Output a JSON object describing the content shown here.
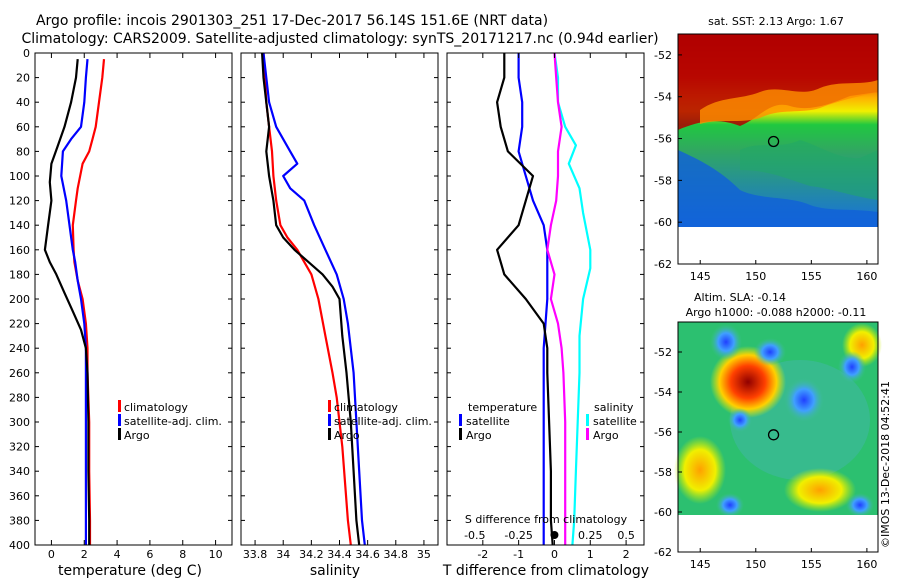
{
  "title": {
    "line1": "Argo profile: incois 2901303_251 17-Dec-2017 56.14S 151.6E (NRT data)",
    "line2": "Climatology: CARS2009. Satellite-adjusted climatology: synTS_20171217.nc (0.94d earlier)"
  },
  "watermark": "©IMOS 13-Dec-2018 04:52:41",
  "colors": {
    "climatology": "#ff0000",
    "satellite": "#0000ff",
    "argo": "#000000",
    "sal_satellite": "#00ffff",
    "sal_argo": "#ff00ff"
  },
  "chart_data": [
    {
      "type": "line",
      "id": "temperature",
      "xlabel": "temperature (deg C)",
      "ylabel": "",
      "xlim": [
        -1,
        11
      ],
      "ylim": [
        400,
        0
      ],
      "xticks": [
        0,
        2,
        4,
        6,
        8,
        10
      ],
      "xtick_labels": [
        "0",
        "2",
        "4",
        "6",
        "8",
        "10"
      ],
      "yticks": [
        0,
        20,
        40,
        60,
        80,
        100,
        120,
        140,
        160,
        180,
        200,
        220,
        240,
        260,
        280,
        300,
        320,
        340,
        360,
        380,
        400
      ],
      "ytick_labels": [
        "0",
        "20",
        "40",
        "60",
        "80",
        "100",
        "120",
        "140",
        "160",
        "180",
        "200",
        "220",
        "240",
        "260",
        "280",
        "300",
        "320",
        "340",
        "360",
        "380",
        "400"
      ],
      "legend": [
        "climatology",
        "satellite-adj. clim.",
        "Argo"
      ],
      "series": [
        {
          "name": "climatology",
          "color": "#ff0000",
          "x": [
            3.2,
            3.1,
            2.9,
            2.7,
            2.5,
            2.3,
            1.9,
            1.6,
            1.5,
            1.3,
            1.35,
            1.4,
            1.6,
            1.9,
            2.1,
            2.2,
            2.2,
            2.3,
            2.3,
            2.35,
            2.35
          ],
          "y": [
            5,
            20,
            40,
            60,
            70,
            80,
            90,
            110,
            120,
            140,
            160,
            170,
            185,
            200,
            220,
            240,
            260,
            300,
            340,
            380,
            400
          ]
        },
        {
          "name": "satellite-adj. clim.",
          "color": "#0000ff",
          "x": [
            2.2,
            2.1,
            2.0,
            1.8,
            1.2,
            0.7,
            0.6,
            0.9,
            1.1,
            1.3,
            1.45,
            1.6,
            1.8,
            2.0,
            2.1,
            2.1,
            2.1,
            2.1,
            2.1
          ],
          "y": [
            5,
            20,
            40,
            60,
            70,
            80,
            100,
            120,
            140,
            160,
            170,
            185,
            200,
            220,
            240,
            280,
            320,
            360,
            400
          ]
        },
        {
          "name": "Argo",
          "color": "#000000",
          "x": [
            1.6,
            1.5,
            1.2,
            0.8,
            0.4,
            0.0,
            -0.1,
            0.0,
            -0.2,
            -0.4,
            -0.1,
            0.3,
            0.8,
            1.3,
            1.8,
            2.1,
            2.2,
            2.25,
            2.25,
            2.3,
            2.3
          ],
          "y": [
            5,
            20,
            40,
            60,
            75,
            90,
            105,
            120,
            140,
            160,
            170,
            180,
            195,
            210,
            225,
            240,
            260,
            300,
            340,
            380,
            400
          ]
        }
      ]
    },
    {
      "type": "line",
      "id": "salinity",
      "xlabel": "salinity",
      "xlim": [
        33.7,
        35.1
      ],
      "ylim": [
        400,
        0
      ],
      "xticks": [
        33.8,
        34,
        34.2,
        34.4,
        34.6,
        34.8,
        35
      ],
      "xtick_labels": [
        "33.8",
        "34",
        "34.2",
        "34.4",
        "34.6",
        "34.8",
        "35"
      ],
      "legend": [
        "climatology",
        "satellite-adj. clim.",
        "Argo"
      ],
      "series": [
        {
          "name": "climatology",
          "color": "#ff0000",
          "x": [
            33.86,
            33.87,
            33.88,
            33.9,
            33.92,
            33.93,
            33.95,
            33.98,
            34.03,
            34.1,
            34.15,
            34.2,
            34.25,
            34.3,
            34.35,
            34.38,
            34.4,
            34.42,
            34.44,
            34.46,
            34.48
          ],
          "y": [
            0,
            20,
            40,
            60,
            80,
            100,
            120,
            140,
            150,
            160,
            170,
            180,
            200,
            230,
            260,
            280,
            300,
            320,
            350,
            380,
            400
          ]
        },
        {
          "name": "satellite-adj. clim.",
          "color": "#0000ff",
          "x": [
            33.86,
            33.88,
            33.9,
            33.95,
            34.05,
            34.1,
            34.0,
            34.05,
            34.15,
            34.22,
            34.3,
            34.38,
            34.43,
            34.46,
            34.5,
            34.52,
            34.54,
            34.56,
            34.58
          ],
          "y": [
            0,
            20,
            40,
            60,
            80,
            90,
            100,
            110,
            120,
            140,
            160,
            180,
            200,
            220,
            260,
            300,
            340,
            380,
            400
          ]
        },
        {
          "name": "Argo",
          "color": "#000000",
          "x": [
            33.85,
            33.86,
            33.88,
            33.9,
            33.88,
            33.9,
            33.93,
            33.95,
            34.0,
            34.08,
            34.18,
            34.28,
            34.35,
            34.4,
            34.42,
            34.45,
            34.48,
            34.5,
            34.52,
            34.54
          ],
          "y": [
            0,
            20,
            40,
            60,
            80,
            100,
            120,
            140,
            150,
            160,
            170,
            180,
            190,
            200,
            230,
            260,
            300,
            340,
            380,
            400
          ]
        }
      ]
    },
    {
      "type": "line",
      "id": "difference",
      "xlabel": "T difference from climatology",
      "xlim": [
        -3,
        2.5
      ],
      "ylim": [
        400,
        0
      ],
      "xticks": [
        -2,
        -1,
        0,
        1,
        2
      ],
      "xtick_labels": [
        "-2",
        "-1",
        "0",
        "1",
        "2"
      ],
      "top_axis_label": "S difference from climatology",
      "top_ticks": [
        "-0.5",
        "-0.25",
        "0",
        "0.25",
        "0.5"
      ],
      "top_tick_values": [
        -2,
        -1,
        0,
        1,
        2
      ],
      "legend_temperature": {
        "title": "temperature",
        "items": [
          "satellite",
          "Argo"
        ]
      },
      "legend_salinity": {
        "title": "salinity",
        "items": [
          "satellite",
          "Argo"
        ]
      },
      "series": [
        {
          "name": "temperature satellite",
          "color": "#0000ff",
          "x": [
            -1.0,
            -1.0,
            -0.9,
            -0.9,
            -1.0,
            -0.8,
            -0.6,
            -0.3,
            -0.2,
            -0.2,
            -0.2,
            -0.25,
            -0.3,
            -0.3,
            -0.3,
            -0.3,
            -0.3
          ],
          "y": [
            0,
            20,
            40,
            60,
            80,
            100,
            120,
            140,
            160,
            180,
            200,
            220,
            240,
            280,
            320,
            360,
            400
          ]
        },
        {
          "name": "temperature Argo",
          "color": "#000000",
          "x": [
            -1.4,
            -1.4,
            -1.6,
            -1.5,
            -1.3,
            -0.6,
            -0.8,
            -1.0,
            -1.6,
            -1.5,
            -1.4,
            -0.8,
            -0.3,
            -0.2,
            -0.2,
            -0.15,
            -0.1,
            -0.1,
            -0.05
          ],
          "y": [
            0,
            20,
            40,
            60,
            80,
            100,
            120,
            140,
            160,
            170,
            180,
            200,
            220,
            240,
            260,
            300,
            340,
            380,
            400
          ]
        },
        {
          "name": "salinity satellite",
          "color": "#00ffff",
          "x": [
            0.0,
            0.1,
            0.1,
            0.3,
            0.6,
            0.4,
            0.7,
            0.8,
            1.0,
            1.0,
            0.8,
            0.7,
            0.7,
            0.65,
            0.6,
            0.55,
            0.5
          ],
          "y": [
            0,
            20,
            40,
            60,
            75,
            90,
            110,
            130,
            160,
            175,
            200,
            230,
            260,
            300,
            340,
            380,
            400
          ]
        },
        {
          "name": "salinity Argo",
          "color": "#ff00ff",
          "x": [
            0.0,
            0.05,
            0.1,
            0.2,
            0.1,
            0.1,
            0.05,
            -0.1,
            -0.2,
            0.0,
            -0.1,
            0.1,
            0.2,
            0.25,
            0.3,
            0.3,
            0.3,
            0.3
          ],
          "y": [
            0,
            20,
            40,
            60,
            80,
            100,
            120,
            140,
            160,
            180,
            200,
            220,
            240,
            260,
            300,
            340,
            380,
            400
          ]
        }
      ]
    },
    {
      "type": "heatmap",
      "id": "sst_map",
      "title": "sat. SST: 2.13 Argo: 1.67",
      "xlim": [
        143,
        161
      ],
      "ylim": [
        -62,
        -51
      ],
      "xticks": [
        145,
        150,
        155,
        160
      ],
      "xtick_labels": [
        "145",
        "150",
        "155",
        "160"
      ],
      "yticks": [
        -52,
        -54,
        -56,
        -58,
        -60,
        -62
      ],
      "ytick_labels": [
        "-52",
        "-54",
        "-56",
        "-58",
        "-60",
        "-62"
      ],
      "data_extent_lat": [
        -60,
        -51
      ],
      "marker": {
        "lon": 151.6,
        "lat": -56.14
      }
    },
    {
      "type": "heatmap",
      "id": "sla_map",
      "title_line1": "Altim. SLA: -0.14",
      "title_line2": "Argo h1000: -0.088 h2000: -0.11",
      "xlim": [
        143,
        161
      ],
      "ylim": [
        -62,
        -50.5
      ],
      "xticks": [
        145,
        150,
        155,
        160
      ],
      "xtick_labels": [
        "145",
        "150",
        "155",
        "160"
      ],
      "yticks": [
        -52,
        -54,
        -56,
        -58,
        -60,
        -62
      ],
      "ytick_labels": [
        "-52",
        "-54",
        "-56",
        "-58",
        "-60",
        "-62"
      ],
      "data_extent_lat": [
        -60,
        -50.5
      ],
      "marker": {
        "lon": 151.6,
        "lat": -56.14
      }
    }
  ]
}
